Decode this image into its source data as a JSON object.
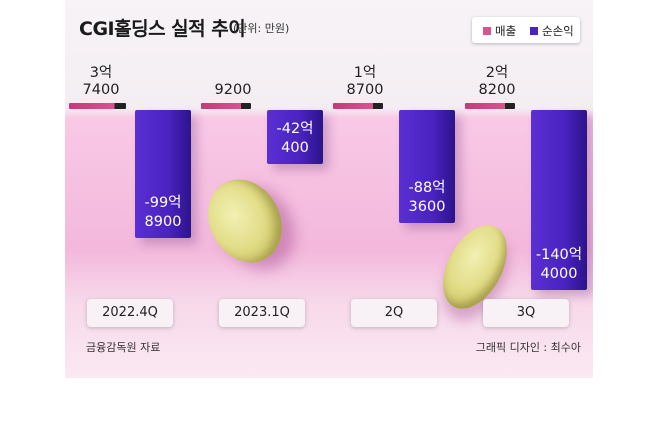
{
  "title": "CGI홀딩스 실적 추이",
  "unit": "(단위: 만원)",
  "legend": {
    "revenue": "매출",
    "net_income": "순손익",
    "revenue_color": "#d9548e",
    "net_income_color": "#4a22c0"
  },
  "source": "금융감독원 자료",
  "credit": "그래픽 디자인 : 최수아",
  "chart_data": {
    "type": "bar",
    "categories": [
      "2022.4Q",
      "2023.1Q",
      "2Q",
      "3Q"
    ],
    "series": [
      {
        "name": "매출",
        "values": [
          37400,
          9200,
          18700,
          28200
        ],
        "labels": [
          [
            "3억",
            "7400"
          ],
          [
            "",
            "9200"
          ],
          [
            "1억",
            "8700"
          ],
          [
            "2억",
            "8200"
          ]
        ]
      },
      {
        "name": "순손익",
        "values": [
          -998900,
          -420400,
          -883600,
          -1404000
        ],
        "labels": [
          [
            "-99억",
            "8900"
          ],
          [
            "-42억",
            "400"
          ],
          [
            "-88억",
            "3600"
          ],
          [
            "-140억",
            "4000"
          ]
        ]
      }
    ]
  }
}
